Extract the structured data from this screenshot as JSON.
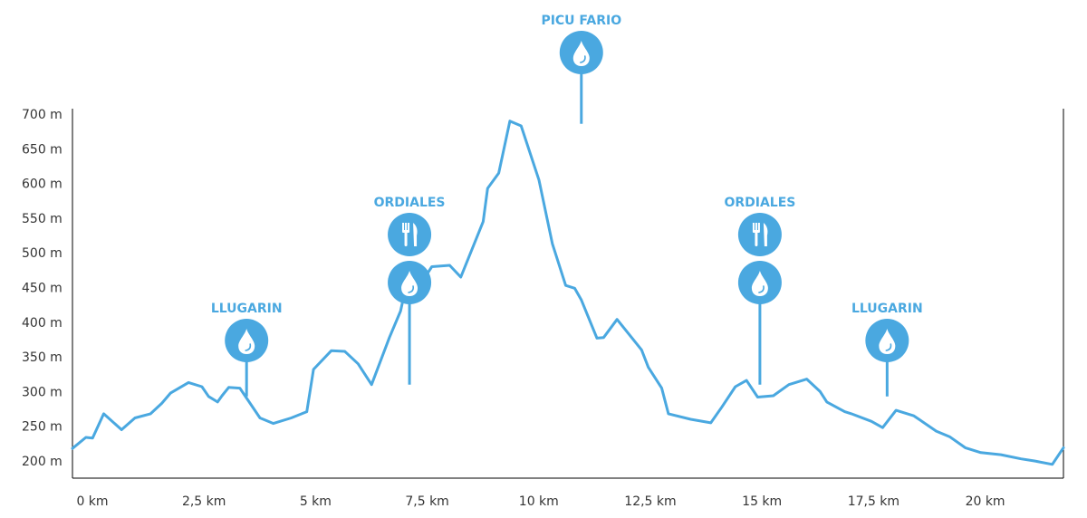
{
  "chart_data": {
    "type": "area",
    "title": "",
    "xlabel": "",
    "ylabel": "",
    "xlim": [
      0,
      22.2
    ],
    "ylim": [
      175,
      705
    ],
    "x_ticks": [
      {
        "value": 0,
        "label": "0 km"
      },
      {
        "value": 2.5,
        "label": "2,5 km"
      },
      {
        "value": 5,
        "label": "5 km"
      },
      {
        "value": 7.5,
        "label": "7,5 km"
      },
      {
        "value": 10,
        "label": "10 km"
      },
      {
        "value": 12.5,
        "label": "12,5 km"
      },
      {
        "value": 15,
        "label": "15 km"
      },
      {
        "value": 17.5,
        "label": "17,5 km"
      },
      {
        "value": 20,
        "label": "20 km"
      }
    ],
    "y_ticks": [
      {
        "value": 200,
        "label": "200 m"
      },
      {
        "value": 250,
        "label": "250 m"
      },
      {
        "value": 300,
        "label": "300 m"
      },
      {
        "value": 350,
        "label": "350 m"
      },
      {
        "value": 400,
        "label": "400 m"
      },
      {
        "value": 450,
        "label": "450 m"
      },
      {
        "value": 500,
        "label": "500 m"
      },
      {
        "value": 550,
        "label": "550 m"
      },
      {
        "value": 600,
        "label": "600 m"
      },
      {
        "value": 650,
        "label": "650 m"
      },
      {
        "value": 700,
        "label": "700 m"
      }
    ],
    "grid": false,
    "line_color": "#4aa8e0",
    "series": [
      {
        "x": [
          0,
          0.3,
          0.45,
          0.7,
          1.1,
          1.4,
          1.75,
          2.0,
          2.2,
          2.6,
          2.9,
          3.05,
          3.25,
          3.35,
          3.5,
          3.75,
          4.2,
          4.5,
          4.9,
          5.25,
          5.4,
          5.8,
          6.1,
          6.4,
          6.7,
          7.1,
          7.35,
          7.5,
          7.7,
          7.85,
          8.05,
          8.45,
          8.7,
          9.2,
          9.3,
          9.55,
          9.8,
          10.05,
          10.45,
          10.75,
          11.05,
          11.25,
          11.4,
          11.75,
          11.9,
          12.2,
          12.75,
          12.9,
          13.2,
          13.35,
          13.85,
          14.3,
          14.55,
          14.85,
          15.1,
          15.35,
          15.7,
          16.05,
          16.45,
          16.75,
          16.9,
          17.3,
          17.45,
          17.9,
          18.15,
          18.45,
          18.85,
          19.35,
          19.65,
          20.0,
          20.35,
          20.8,
          21.25,
          21.55,
          21.95,
          22.2
        ],
        "y": [
          218,
          234,
          233,
          268,
          245,
          262,
          268,
          283,
          298,
          313,
          307,
          293,
          285,
          294,
          306,
          305,
          262,
          254,
          262,
          271,
          332,
          359,
          358,
          340,
          310,
          378,
          416,
          460,
          440,
          460,
          480,
          482,
          465,
          545,
          593,
          615,
          690,
          683,
          605,
          513,
          453,
          449,
          432,
          377,
          378,
          404,
          360,
          335,
          305,
          268,
          260,
          255,
          278,
          307,
          316,
          292,
          294,
          310,
          318,
          300,
          285,
          271,
          268,
          257,
          248,
          273,
          265,
          243,
          235,
          219,
          212,
          209,
          203,
          200,
          195,
          219
        ]
      }
    ],
    "annotations": [
      {
        "x": 3.9,
        "y": 293,
        "label": "LLUGARIN",
        "icons": [
          "water-drop"
        ]
      },
      {
        "x": 7.55,
        "y": 310,
        "label": "ORDIALES",
        "icons": [
          "cutlery",
          "water-drop"
        ]
      },
      {
        "x": 11.4,
        "y": 686,
        "label": "PICU FARIO",
        "icons": [
          "water-drop"
        ]
      },
      {
        "x": 15.4,
        "y": 310,
        "label": "ORDIALES",
        "icons": [
          "cutlery",
          "water-drop"
        ]
      },
      {
        "x": 18.25,
        "y": 293,
        "label": "LLUGARIN",
        "icons": [
          "water-drop"
        ]
      }
    ]
  }
}
